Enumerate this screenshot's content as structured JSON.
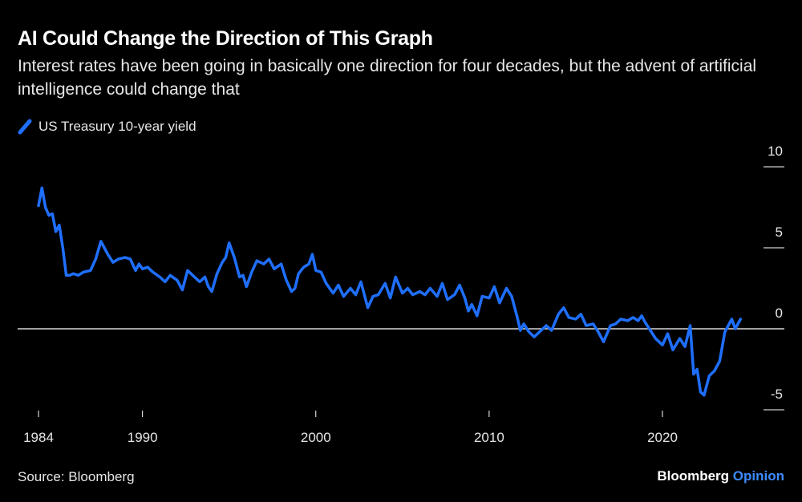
{
  "header": {
    "title": "AI Could Change the Direction of This Graph",
    "subtitle": "Interest rates have been going in basically one direction for four decades, but the advent of artificial intelligence could change that"
  },
  "footer": {
    "source": "Source: Bloomberg",
    "brand_main": "Bloomberg",
    "brand_opinion": "Opinion"
  },
  "colors": {
    "series": "#1f6fff",
    "background": "#000000",
    "axis": "#ffffff"
  },
  "chart_data": {
    "type": "line",
    "title": "AI Could Change the Direction of This Graph",
    "xlabel": "",
    "ylabel": "",
    "xlim": [
      1984,
      2025
    ],
    "ylim": [
      -5,
      10
    ],
    "x_ticks": [
      1984,
      1990,
      2000,
      2010,
      2020
    ],
    "y_ticks": [
      10,
      5,
      0,
      -5
    ],
    "y_axis_side": "right",
    "zero_line": true,
    "legend_position": "top-left",
    "series": [
      {
        "name": "US Treasury 10-year yield",
        "color": "#1f6fff",
        "x": [
          1984.0,
          1984.2,
          1984.4,
          1984.6,
          1984.8,
          1985.0,
          1985.2,
          1985.4,
          1985.6,
          1985.8,
          1986.0,
          1986.3,
          1986.6,
          1987.0,
          1987.3,
          1987.6,
          1987.8,
          1988.0,
          1988.3,
          1988.6,
          1989.0,
          1989.3,
          1989.6,
          1989.8,
          1990.0,
          1990.3,
          1990.6,
          1991.0,
          1991.3,
          1991.6,
          1992.0,
          1992.3,
          1992.6,
          1993.0,
          1993.3,
          1993.6,
          1993.8,
          1994.0,
          1994.3,
          1994.6,
          1994.8,
          1995.0,
          1995.3,
          1995.6,
          1995.8,
          1996.0,
          1996.3,
          1996.6,
          1997.0,
          1997.3,
          1997.6,
          1998.0,
          1998.3,
          1998.6,
          1998.8,
          1999.0,
          1999.3,
          1999.6,
          1999.8,
          2000.0,
          2000.3,
          2000.6,
          2001.0,
          2001.3,
          2001.6,
          2002.0,
          2002.3,
          2002.6,
          2003.0,
          2003.3,
          2003.6,
          2004.0,
          2004.3,
          2004.6,
          2005.0,
          2005.3,
          2005.6,
          2006.0,
          2006.3,
          2006.6,
          2007.0,
          2007.3,
          2007.6,
          2008.0,
          2008.3,
          2008.6,
          2008.8,
          2009.0,
          2009.3,
          2009.6,
          2010.0,
          2010.3,
          2010.6,
          2011.0,
          2011.3,
          2011.6,
          2011.8,
          2012.0,
          2012.3,
          2012.6,
          2013.0,
          2013.3,
          2013.6,
          2014.0,
          2014.3,
          2014.6,
          2015.0,
          2015.3,
          2015.6,
          2016.0,
          2016.3,
          2016.6,
          2017.0,
          2017.3,
          2017.6,
          2018.0,
          2018.3,
          2018.6,
          2018.8,
          2019.0,
          2019.3,
          2019.6,
          2020.0,
          2020.3,
          2020.6,
          2021.0,
          2021.3,
          2021.6,
          2021.8,
          2022.0,
          2022.2,
          2022.4,
          2022.7,
          2023.0,
          2023.3,
          2023.6,
          2024.0,
          2024.2,
          2024.5
        ],
        "values": [
          7.6,
          8.7,
          7.5,
          7.0,
          7.1,
          6.0,
          6.4,
          5.0,
          3.3,
          3.3,
          3.4,
          3.3,
          3.5,
          3.6,
          4.3,
          5.4,
          5.0,
          4.6,
          4.1,
          4.3,
          4.4,
          4.3,
          3.6,
          4.0,
          3.7,
          3.8,
          3.5,
          3.2,
          2.9,
          3.3,
          3.0,
          2.4,
          3.6,
          3.2,
          2.9,
          3.2,
          2.6,
          2.3,
          3.4,
          4.1,
          4.4,
          5.3,
          4.4,
          3.2,
          3.3,
          2.6,
          3.5,
          4.2,
          4.0,
          4.3,
          3.7,
          4.0,
          3.0,
          2.3,
          2.5,
          3.4,
          3.8,
          4.0,
          4.6,
          3.6,
          3.5,
          2.8,
          2.2,
          2.7,
          2.0,
          2.5,
          2.1,
          2.9,
          1.3,
          2.0,
          2.1,
          2.8,
          1.9,
          3.2,
          2.2,
          2.5,
          2.1,
          2.3,
          2.1,
          2.5,
          2.0,
          2.8,
          1.8,
          2.1,
          2.7,
          1.9,
          1.1,
          1.5,
          0.8,
          2.0,
          1.9,
          2.6,
          1.6,
          2.5,
          2.0,
          0.8,
          -0.1,
          0.3,
          -0.2,
          -0.5,
          -0.1,
          0.2,
          -0.1,
          0.9,
          1.3,
          0.7,
          0.6,
          0.9,
          0.2,
          0.3,
          -0.2,
          -0.8,
          0.2,
          0.3,
          0.6,
          0.5,
          0.7,
          0.5,
          0.8,
          0.4,
          -0.1,
          -0.6,
          -1.0,
          -0.3,
          -1.3,
          -0.6,
          -1.1,
          0.2,
          -2.8,
          -2.5,
          -3.9,
          -4.1,
          -2.9,
          -2.6,
          -2.0,
          -0.2,
          0.6,
          0.0,
          0.6
        ]
      }
    ]
  }
}
